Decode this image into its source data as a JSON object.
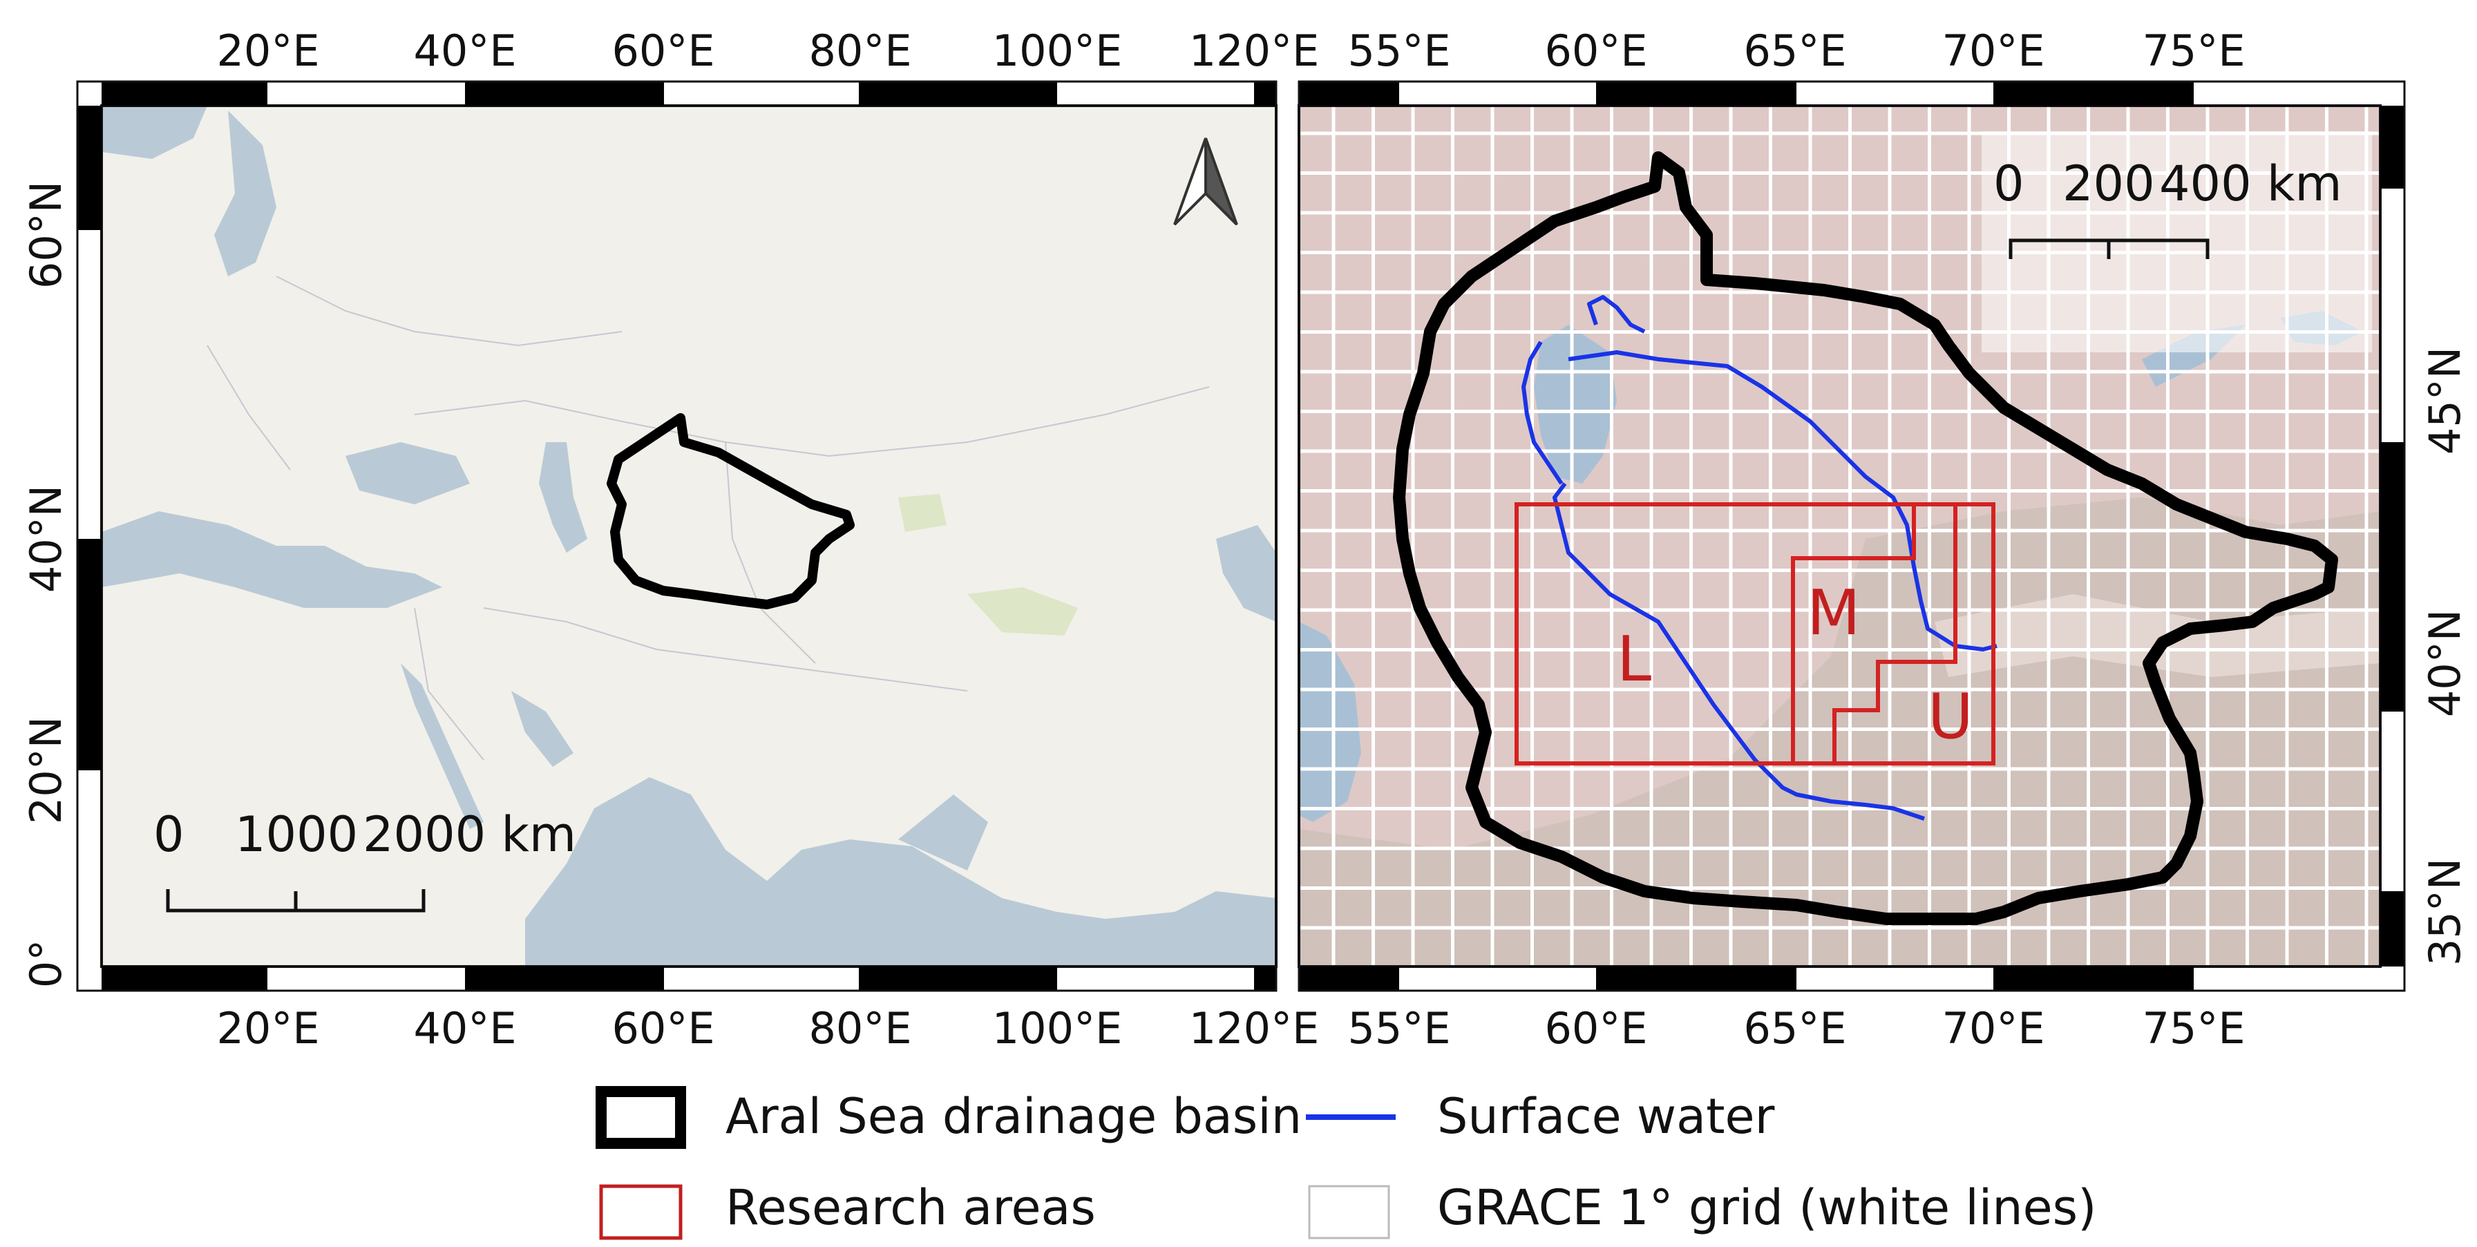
{
  "left_map": {
    "top_ticks": [
      "20°E",
      "40°E",
      "60°E",
      "80°E",
      "100°E",
      "120°E"
    ],
    "bottom_ticks": [
      "20°E",
      "40°E",
      "60°E",
      "80°E",
      "100°E",
      "120°E"
    ],
    "left_ticks": [
      "60°N",
      "40°N",
      "20°N",
      "0°"
    ],
    "scalebar": {
      "labels": [
        "0",
        "1000",
        "2000 km"
      ]
    },
    "north_arrow": "north-arrow-icon"
  },
  "right_map": {
    "top_ticks": [
      "55°E",
      "60°E",
      "65°E",
      "70°E",
      "75°E"
    ],
    "bottom_ticks": [
      "55°E",
      "60°E",
      "65°E",
      "70°E",
      "75°E"
    ],
    "right_ticks": [
      "45°N",
      "40°N",
      "35°N"
    ],
    "scalebar": {
      "labels": [
        "0",
        "200",
        "400 km"
      ]
    },
    "area_labels": [
      "L",
      "M",
      "U"
    ]
  },
  "legend": {
    "items": [
      {
        "label": "Aral Sea drainage basin",
        "symbol": "thick-black-outline",
        "color": "#000000"
      },
      {
        "label": "Surface water",
        "symbol": "blue-line",
        "color": "#1a33e6"
      },
      {
        "label": "Research areas",
        "symbol": "red-outline",
        "color": "#c21f1f"
      },
      {
        "label": "GRACE 1° grid (white lines)",
        "symbol": "grey-outline",
        "color": "#bbbbbb"
      }
    ]
  },
  "colors": {
    "land_left": "#f1f0ea",
    "sea": "#b9cad6",
    "land_right": "#dec9c6",
    "basin": "#000000",
    "water": "#1a33e6",
    "research": "#d42222",
    "grid": "#ffffff"
  }
}
